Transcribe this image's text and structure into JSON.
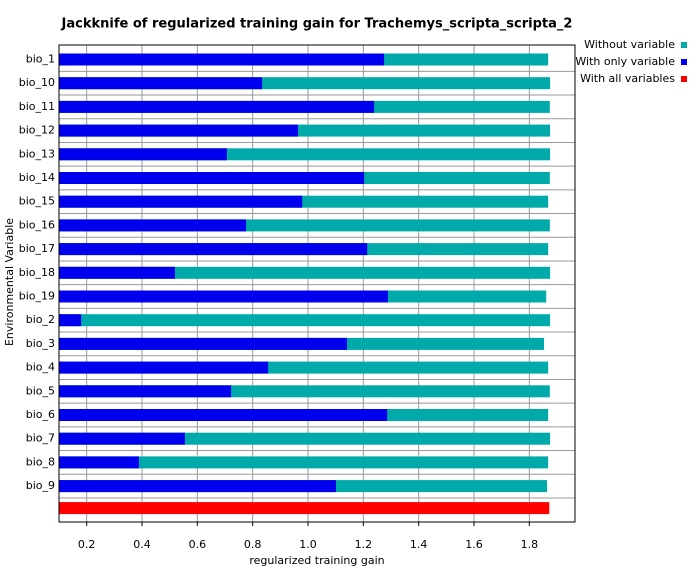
{
  "chart_data": {
    "type": "bar",
    "orientation": "horizontal",
    "title": "Jackknife of regularized training gain for Trachemys_scripta_scripta_2",
    "xlabel": "regularized training gain",
    "ylabel": "Environmental Variable",
    "categories": [
      "bio_1",
      "bio_10",
      "bio_11",
      "bio_12",
      "bio_13",
      "bio_14",
      "bio_15",
      "bio_16",
      "bio_17",
      "bio_18",
      "bio_19",
      "bio_2",
      "bio_3",
      "bio_4",
      "bio_5",
      "bio_6",
      "bio_7",
      "bio_8",
      "bio_9"
    ],
    "series": [
      {
        "name": "Without variable",
        "color": "#00aaaa",
        "values": [
          1.868,
          1.875,
          1.874,
          1.875,
          1.875,
          1.874,
          1.868,
          1.874,
          1.868,
          1.875,
          1.861,
          1.875,
          1.853,
          1.868,
          1.874,
          1.868,
          1.875,
          1.868,
          1.864
        ]
      },
      {
        "name": "With only variable",
        "color": "#0000ee",
        "values": [
          1.275,
          0.834,
          1.239,
          0.964,
          0.707,
          1.203,
          0.979,
          0.776,
          1.214,
          0.519,
          1.289,
          0.18,
          1.141,
          0.856,
          0.722,
          1.286,
          0.555,
          0.389,
          1.101
        ]
      }
    ],
    "all_variables": {
      "name": "With all variables",
      "color": "#ff0000",
      "value": 1.872
    },
    "xlim": [
      0.1,
      1.965
    ],
    "xticks": [
      0.2,
      0.4,
      0.6,
      0.8,
      {
        "value": 1.0,
        "label": "1.0"
      },
      1.2,
      1.4,
      1.6,
      1.8
    ],
    "grid": true
  }
}
